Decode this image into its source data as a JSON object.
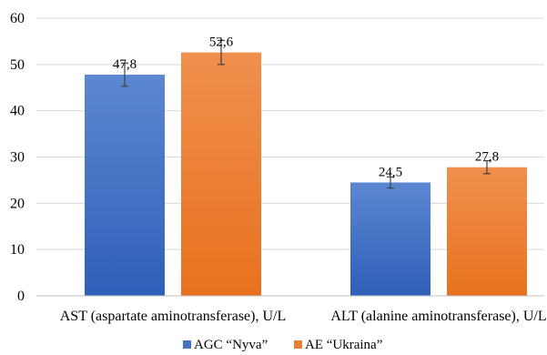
{
  "chart_data": {
    "type": "bar",
    "categories": [
      "AST (aspartate aminotransferase), U/L",
      "ALT (alanine aminotransferase), U/L"
    ],
    "series": [
      {
        "name": "AGC “Nyva”",
        "values": [
          47.8,
          24.5
        ],
        "error": [
          2.5,
          1.2
        ],
        "labels": [
          "47,8",
          "24,5"
        ],
        "color": "#4472C4"
      },
      {
        "name": "AE “Ukraina”",
        "values": [
          52.6,
          27.8
        ],
        "error": [
          2.6,
          1.4
        ],
        "labels": [
          "52,6",
          "27,8"
        ],
        "color": "#ED7D31"
      }
    ],
    "ylim": [
      0,
      60
    ],
    "yticks": [
      "0",
      "10",
      "20",
      "30",
      "40",
      "50",
      "60"
    ],
    "grid": true,
    "legend": "bottom"
  }
}
